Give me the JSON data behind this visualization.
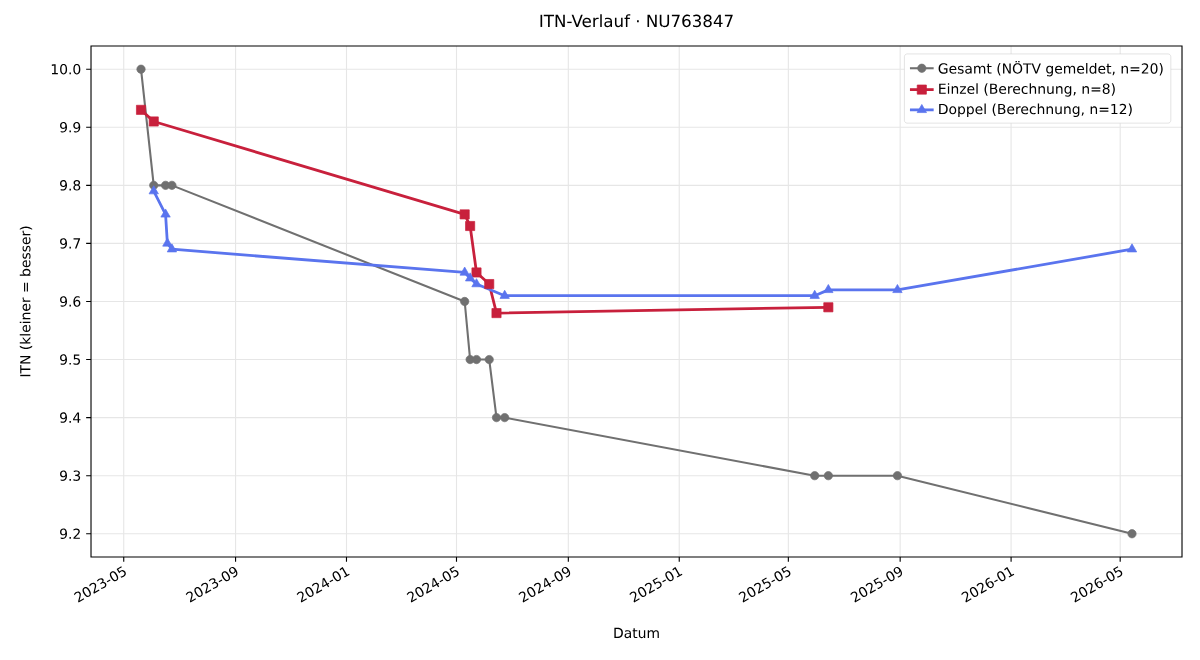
{
  "chart_data": {
    "type": "line",
    "title": "ITN-Verlauf · NU763847",
    "xlabel": "Datum",
    "ylabel": "ITN (kleiner = besser)",
    "xlim": [
      "2023-03-26",
      "2026-07-08"
    ],
    "xticks": [
      "2023-05",
      "2023-09",
      "2024-01",
      "2024-05",
      "2024-09",
      "2025-01",
      "2025-05",
      "2025-09",
      "2026-01",
      "2026-05"
    ],
    "ylim": [
      9.16,
      10.04
    ],
    "yticks": [
      9.2,
      9.3,
      9.4,
      9.5,
      9.6,
      9.7,
      9.8,
      9.9,
      {
        "value": 10,
        "label": "10.0"
      }
    ],
    "grid": true,
    "legend": "top right",
    "series": [
      {
        "name": "Gesamt (NÖTV gemeldet, n=20)",
        "color": "#707070",
        "marker": "circle",
        "x": [
          "2023-05-20",
          "2023-06-03",
          "2023-06-16",
          "2023-06-23",
          "2024-05-10",
          "2024-05-16",
          "2024-05-23",
          "2024-06-06",
          "2024-06-14",
          "2024-06-23",
          "2025-05-30",
          "2025-06-14",
          "2025-08-29",
          "2026-05-14"
        ],
        "values": [
          10.0,
          9.8,
          9.8,
          9.8,
          9.6,
          9.5,
          9.5,
          9.5,
          9.4,
          9.4,
          9.3,
          9.3,
          9.3,
          9.2
        ]
      },
      {
        "name": "Einzel (Berechnung, n=8)",
        "color": "#c8203c",
        "marker": "square",
        "x": [
          "2023-05-20",
          "2023-06-03",
          "2024-05-10",
          "2024-05-16",
          "2024-05-23",
          "2024-06-06",
          "2024-06-14",
          "2025-06-14"
        ],
        "values": [
          9.93,
          9.91,
          9.75,
          9.73,
          9.65,
          9.63,
          9.58,
          9.59
        ]
      },
      {
        "name": "Doppel (Berechnung, n=12)",
        "color": "#5a74ee",
        "marker": "triangle",
        "x": [
          "2023-06-03",
          "2023-06-16",
          "2023-06-18",
          "2023-06-23",
          "2024-05-10",
          "2024-05-16",
          "2024-05-23",
          "2024-06-23",
          "2025-05-30",
          "2025-06-14",
          "2025-08-29",
          "2026-05-14"
        ],
        "values": [
          9.79,
          9.75,
          9.7,
          9.69,
          9.65,
          9.64,
          9.63,
          9.61,
          9.61,
          9.62,
          9.62,
          9.69
        ]
      }
    ]
  }
}
